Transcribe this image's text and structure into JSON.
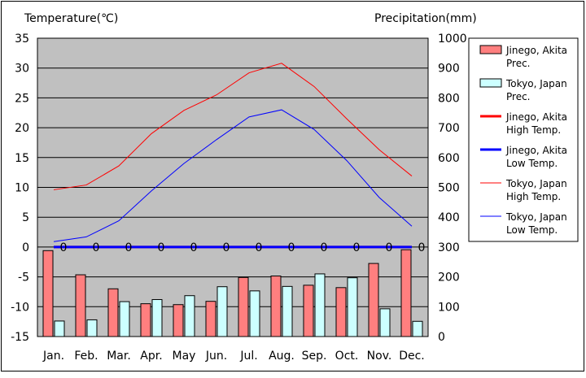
{
  "chart_data": {
    "type": "bar+line",
    "left_axis": {
      "label": "Temperature(℃)",
      "min": -15,
      "max": 35,
      "ticks": [
        35,
        30,
        25,
        20,
        15,
        10,
        5,
        0,
        -5,
        -10,
        -15
      ]
    },
    "right_axis": {
      "label": "Precipitation(mm)",
      "min": 0,
      "max": 1000,
      "ticks": [
        1000,
        900,
        800,
        700,
        600,
        500,
        400,
        300,
        200,
        100,
        0
      ]
    },
    "categories": [
      "Jan.",
      "Feb.",
      "Mar.",
      "Apr.",
      "May",
      "Jun.",
      "Jul.",
      "Aug.",
      "Sep.",
      "Oct.",
      "Nov.",
      "Dec."
    ],
    "grid": true,
    "legend_position": "right",
    "bar_series": [
      {
        "name": "Jinego, Akita Prec.",
        "legend_lines": [
          "Jinego, Akita",
          "Prec."
        ],
        "color": "#ff7f7f",
        "values": [
          288,
          207,
          160,
          110,
          107,
          118,
          198,
          203,
          172,
          164,
          245,
          291
        ]
      },
      {
        "name": "Tokyo, Japan Prec.",
        "legend_lines": [
          "Tokyo, Japan",
          "Prec."
        ],
        "color": "#ccffff",
        "values": [
          52,
          56,
          117,
          124,
          137,
          167,
          153,
          168,
          210,
          197,
          93,
          51
        ]
      }
    ],
    "line_series": [
      {
        "name": "Jinego, Akita High Temp.",
        "legend_lines": [
          "Jinego, Akita",
          "High Temp."
        ],
        "color": "#ff0000",
        "width": 3,
        "values": [
          0,
          0,
          0,
          0,
          0,
          0,
          0,
          0,
          0,
          0,
          0,
          0
        ],
        "point_labels": [
          "0",
          "0",
          "0",
          "0",
          "0",
          "0",
          "0",
          "0",
          "0",
          "0",
          "0",
          "0"
        ]
      },
      {
        "name": "Jinego, Akita Low Temp.",
        "legend_lines": [
          "Jinego, Akita",
          "Low Temp."
        ],
        "color": "#0000ff",
        "width": 3,
        "values": [
          0,
          0,
          0,
          0,
          0,
          0,
          0,
          0,
          0,
          0,
          0,
          0
        ],
        "point_labels": []
      },
      {
        "name": "Tokyo, Japan High Temp.",
        "legend_lines": [
          "Tokyo, Japan",
          "High Temp."
        ],
        "color": "#ff0000",
        "width": 1,
        "values": [
          9.6,
          10.4,
          13.6,
          19.0,
          22.9,
          25.5,
          29.2,
          30.8,
          26.9,
          21.5,
          16.3,
          11.9
        ],
        "point_labels": []
      },
      {
        "name": "Tokyo, Japan Low Temp.",
        "legend_lines": [
          "Tokyo, Japan",
          "Low Temp."
        ],
        "color": "#0000ff",
        "width": 1,
        "values": [
          0.9,
          1.7,
          4.4,
          9.4,
          14.0,
          18.0,
          21.8,
          23.0,
          19.7,
          14.5,
          8.3,
          3.5
        ],
        "point_labels": []
      }
    ]
  }
}
